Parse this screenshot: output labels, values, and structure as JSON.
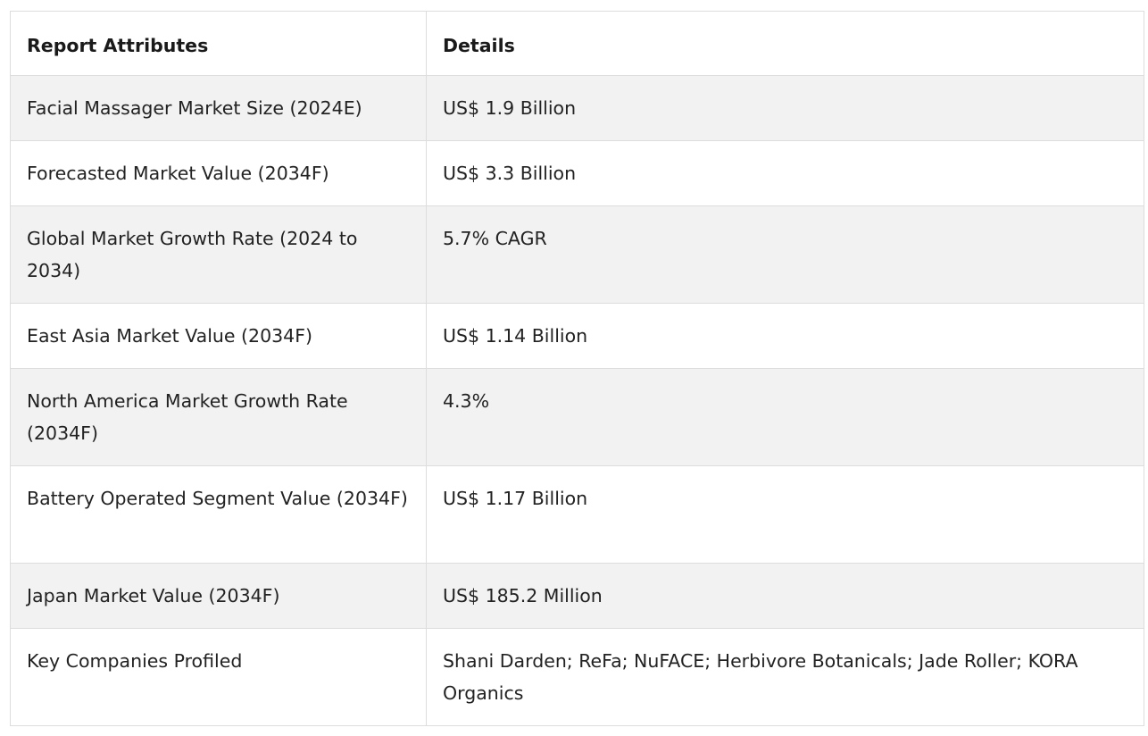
{
  "table": {
    "headers": [
      "Report Attributes",
      "Details"
    ],
    "rows": [
      [
        "Facial Massager Market Size (2024E)",
        "US$ 1.9 Billion"
      ],
      [
        "Forecasted Market Value (2034F)",
        "US$ 3.3 Billion"
      ],
      [
        "Global Market Growth Rate (2024 to 2034)",
        "5.7% CAGR"
      ],
      [
        "East Asia Market Value (2034F)",
        "US$ 1.14 Billion"
      ],
      [
        "North America Market Growth Rate (2034F)",
        "4.3%"
      ],
      [
        "Battery Operated Segment Value (2034F)",
        "US$ 1.17 Billion"
      ],
      [
        "Japan Market Value (2034F)",
        "US$ 185.2 Million"
      ],
      [
        "Key Companies Profiled",
        "Shani Darden; ReFa; NuFACE; Herbivore Botanicals; Jade Roller; KORA Organics"
      ]
    ]
  },
  "colors": {
    "border": "#dddddd",
    "stripe": "#f2f2f2",
    "text": "#222222"
  }
}
